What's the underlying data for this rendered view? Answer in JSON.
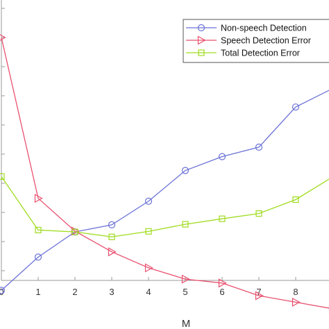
{
  "chart_data": {
    "type": "line",
    "title": "",
    "xlabel": "M",
    "ylabel": "",
    "x": [
      0,
      1,
      2,
      3,
      4,
      5,
      6,
      7,
      8,
      9
    ],
    "xticks": [
      "0",
      "1",
      "2",
      "3",
      "4",
      "5",
      "6",
      "7",
      "8"
    ],
    "xlim": [
      0,
      9
    ],
    "ylim": [
      0,
      1
    ],
    "grid": false,
    "legend_position": "top-right",
    "series": [
      {
        "name": "Non-speech Detection",
        "color": "#6b72d6",
        "marker": "circle",
        "values": [
          0.036,
          0.163,
          0.259,
          0.286,
          0.376,
          0.493,
          0.546,
          0.582,
          0.735,
          0.805
        ]
      },
      {
        "name": "Speech Detection Error",
        "color": "#e8506e",
        "marker": "triangle-right",
        "values": [
          1.0,
          0.387,
          0.262,
          0.183,
          0.122,
          0.079,
          0.064,
          0.016,
          -0.009,
          -0.034
        ]
      },
      {
        "name": "Total Detection Error",
        "color": "#9fdc1e",
        "marker": "square",
        "values": [
          0.47,
          0.266,
          0.259,
          0.24,
          0.261,
          0.288,
          0.309,
          0.329,
          0.382,
          0.468
        ]
      }
    ]
  }
}
